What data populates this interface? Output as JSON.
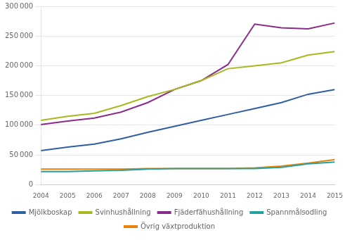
{
  "chart_data": {
    "type": "line",
    "x": [
      2004,
      2005,
      2006,
      2007,
      2008,
      2009,
      2010,
      2011,
      2012,
      2013,
      2014,
      2015
    ],
    "series": [
      {
        "name": "Mjölkboskap",
        "color": "#2E5FA3",
        "values": [
          57000,
          63000,
          68000,
          77000,
          88000,
          98000,
          108000,
          118000,
          128000,
          138000,
          152000,
          160000
        ]
      },
      {
        "name": "Svinhushållning",
        "color": "#A8B820",
        "values": [
          108000,
          115000,
          120000,
          133000,
          148000,
          160000,
          175000,
          195000,
          200000,
          205000,
          218000,
          224000
        ]
      },
      {
        "name": "Fjäderfähushållning",
        "color": "#8B2B8B",
        "values": [
          101000,
          107000,
          112000,
          122000,
          138000,
          160000,
          175000,
          202000,
          270000,
          264000,
          262000,
          272000
        ]
      },
      {
        "name": "Spannmålsodling",
        "color": "#26A0A0",
        "values": [
          22000,
          22000,
          23000,
          24000,
          26000,
          27000,
          27000,
          27000,
          27000,
          29000,
          35000,
          38000
        ]
      },
      {
        "name": "Övrig växtproduktion",
        "color": "#E8820A",
        "values": [
          26000,
          26000,
          26000,
          26000,
          27000,
          27000,
          27000,
          27000,
          28000,
          31000,
          36000,
          42000
        ]
      }
    ],
    "xlim": [
      2004,
      2015
    ],
    "xticks": [
      2004,
      2005,
      2006,
      2007,
      2008,
      2009,
      2010,
      2011,
      2012,
      2013,
      2014,
      2015
    ],
    "ylim": [
      0,
      300000
    ],
    "yticks": [
      0,
      {
        "value": 50000,
        "label": "50 000"
      },
      {
        "value": 100000,
        "label": "100 000"
      },
      {
        "value": 150000,
        "label": "150 000"
      },
      {
        "value": 200000,
        "label": "200 000"
      },
      {
        "value": 250000,
        "label": "250 000"
      },
      {
        "value": 300000,
        "label": "300 000"
      }
    ],
    "grid": true,
    "legend": "bottom"
  }
}
